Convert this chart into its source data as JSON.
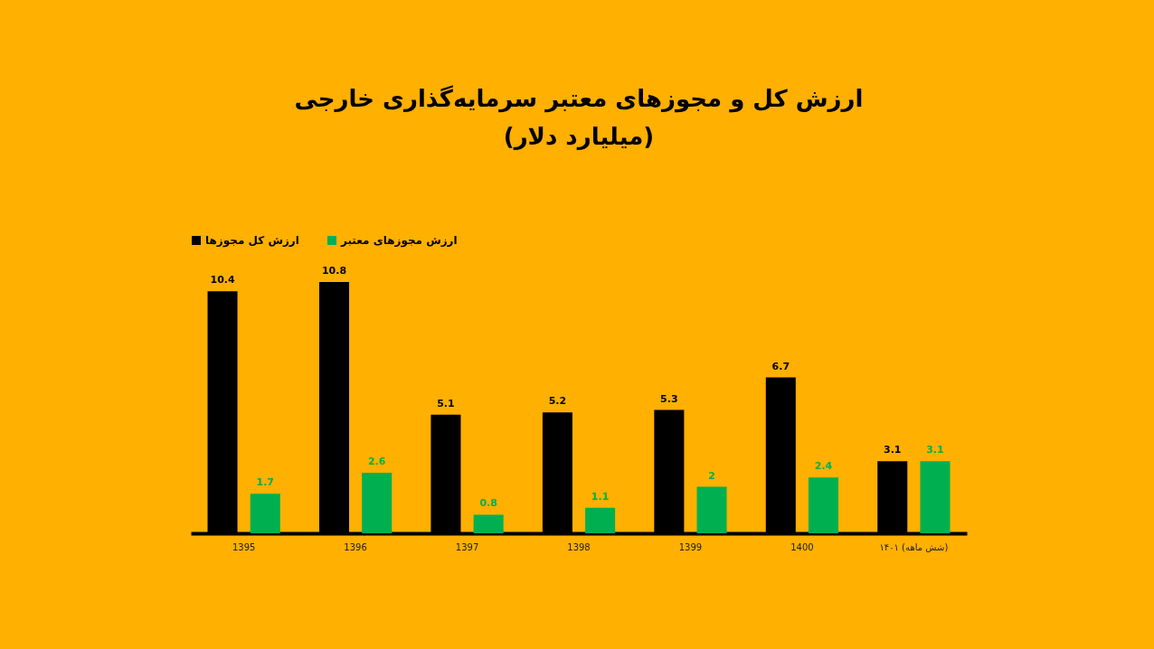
{
  "chart_data": {
    "type": "bar",
    "title": "ارزش کل و مجوزهای معتبر سرمایه‌گذاری خارجی",
    "subtitle": "(میلیارد دلار)",
    "categories": [
      "1395",
      "1396",
      "1397",
      "1398",
      "1399",
      "1400",
      "۱۴۰۱ (شش ماهه)"
    ],
    "series": [
      {
        "name": "ارزش کل مجوزها",
        "color": "#000000",
        "values": [
          10.4,
          10.8,
          5.1,
          5.2,
          5.3,
          6.7,
          3.1
        ]
      },
      {
        "name": "ارزش مجوزهای معتبر",
        "color": "#00b050",
        "values": [
          1.7,
          2.6,
          0.8,
          1.1,
          2,
          2.4,
          3.1
        ]
      }
    ],
    "data_labels": true,
    "legend": "top",
    "grid": false
  }
}
